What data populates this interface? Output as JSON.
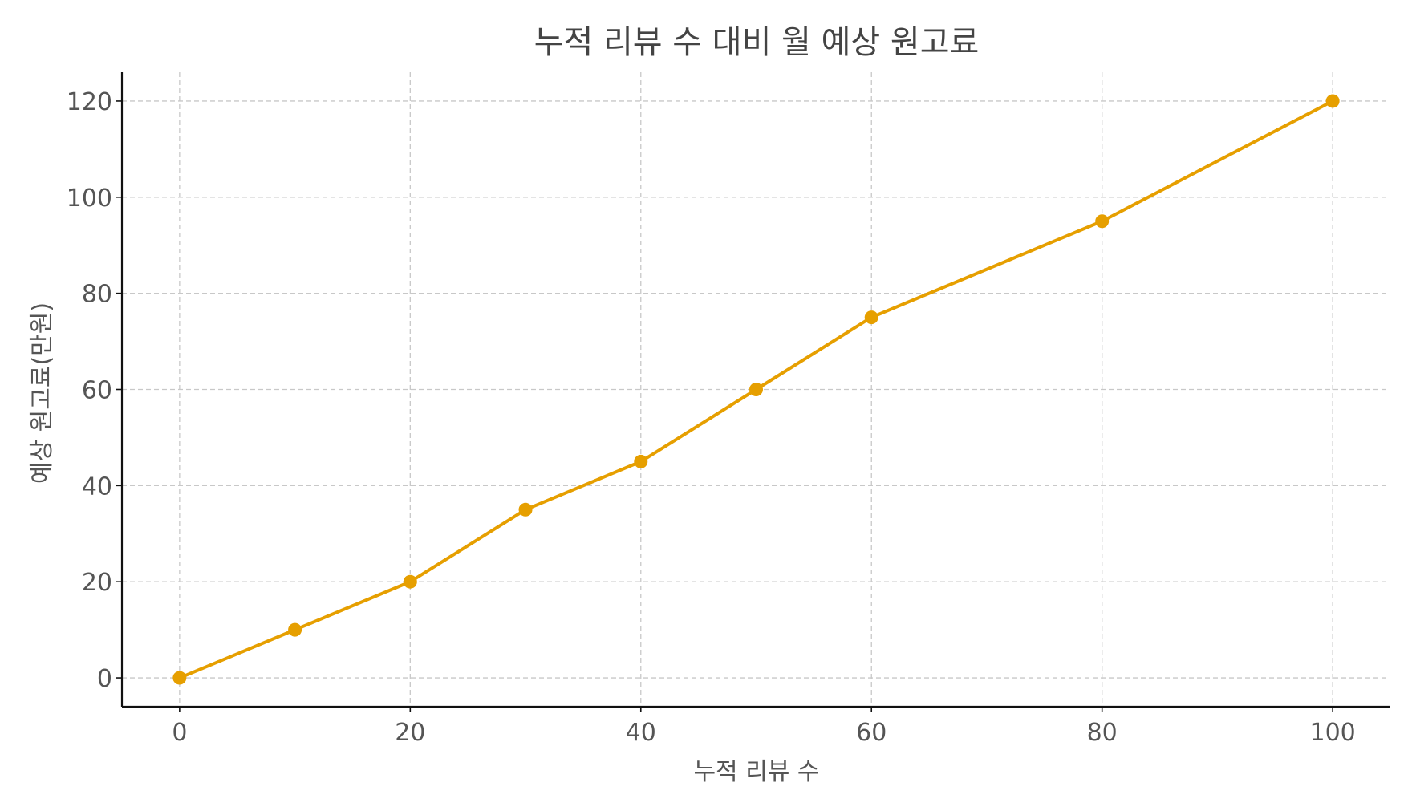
{
  "chart_data": {
    "type": "line",
    "title": "누적 리뷰 수 대비 월 예상 원고료",
    "xlabel": "누적 리뷰 수",
    "ylabel": "예상 원고료(만원)",
    "x": [
      0,
      10,
      20,
      30,
      40,
      50,
      60,
      80,
      100
    ],
    "series": [
      {
        "values": [
          0,
          10,
          20,
          35,
          45,
          60,
          75,
          95,
          120
        ]
      }
    ],
    "xlim": [
      -5,
      105
    ],
    "ylim": [
      -6,
      126
    ],
    "xticks": [
      0,
      20,
      40,
      60,
      80,
      100
    ],
    "yticks": [
      0,
      20,
      40,
      60,
      80,
      100,
      120
    ],
    "grid": true,
    "colors": {
      "line": "#E69F00",
      "marker": "#E69F00"
    }
  }
}
